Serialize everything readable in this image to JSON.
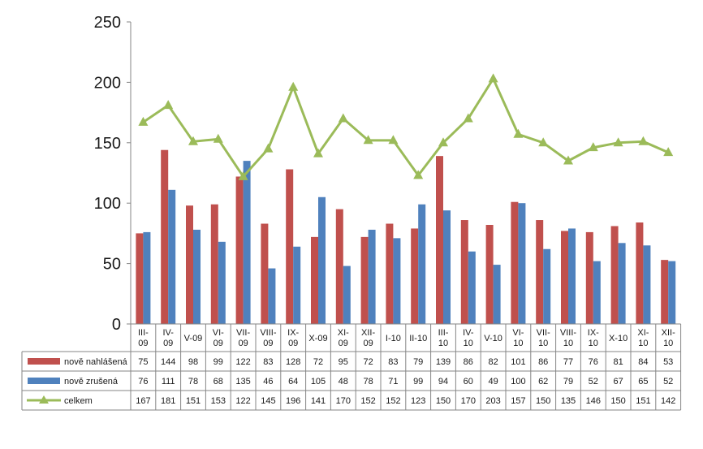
{
  "chart_data": {
    "type": "bar",
    "categories": [
      [
        "III-",
        "09"
      ],
      [
        "IV-",
        "09"
      ],
      [
        "V-09"
      ],
      [
        "VI-",
        "09"
      ],
      [
        "VII-",
        "09"
      ],
      [
        "VIII-",
        "09"
      ],
      [
        "IX-",
        "09"
      ],
      [
        "X-09"
      ],
      [
        "XI-",
        "09"
      ],
      [
        "XII-",
        "09"
      ],
      [
        "I-10"
      ],
      [
        "II-10"
      ],
      [
        "III-",
        "10"
      ],
      [
        "IV-",
        "10"
      ],
      [
        "V-10"
      ],
      [
        "VI-",
        "10"
      ],
      [
        "VII-",
        "10"
      ],
      [
        "VIII-",
        "10"
      ],
      [
        "IX-",
        "10"
      ],
      [
        "X-10"
      ],
      [
        "XI-",
        "10"
      ],
      [
        "XII-",
        "10"
      ]
    ],
    "series": [
      {
        "name": "nově nahlášená",
        "kind": "bar",
        "color": "#c0504d",
        "values": [
          75,
          144,
          98,
          99,
          122,
          83,
          128,
          72,
          95,
          72,
          83,
          79,
          139,
          86,
          82,
          101,
          86,
          77,
          76,
          81,
          84,
          53
        ]
      },
      {
        "name": "nově zrušená",
        "kind": "bar",
        "color": "#4f81bd",
        "values": [
          76,
          111,
          78,
          68,
          135,
          46,
          64,
          105,
          48,
          78,
          71,
          99,
          94,
          60,
          49,
          100,
          62,
          79,
          52,
          67,
          65,
          52
        ]
      },
      {
        "name": "celkem",
        "kind": "line",
        "color": "#9bbb59",
        "values": [
          167,
          181,
          151,
          153,
          122,
          145,
          196,
          141,
          170,
          152,
          152,
          123,
          150,
          170,
          203,
          157,
          150,
          135,
          146,
          150,
          151,
          142
        ]
      }
    ],
    "ylim": [
      0,
      250
    ],
    "yticks": [
      0,
      50,
      100,
      150,
      200,
      250
    ],
    "grid": false,
    "legend": "data-table"
  }
}
